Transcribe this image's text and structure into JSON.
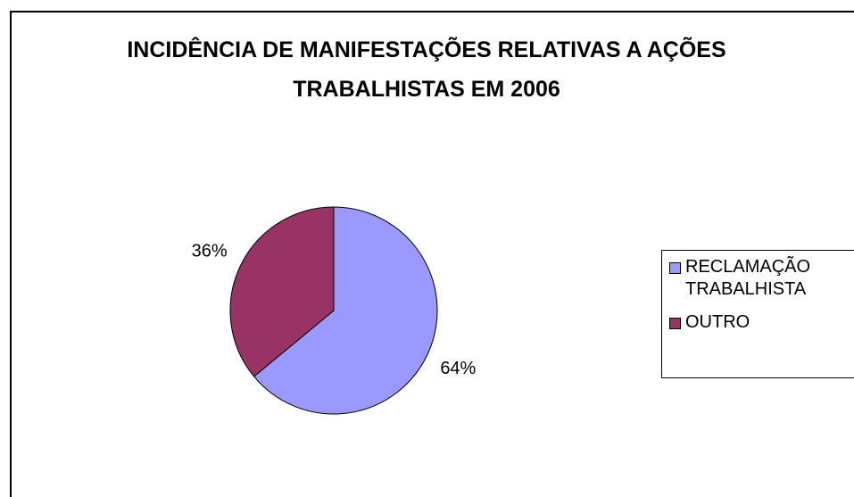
{
  "chart_data": {
    "type": "pie",
    "title": "INCIDÊNCIA DE MANIFESTAÇÕES RELATIVAS A AÇÕES TRABALHISTAS EM 2006",
    "categories": [
      "RECLAMAÇÃO TRABALHISTA",
      "OUTRO"
    ],
    "values": [
      64,
      36
    ],
    "value_labels": [
      "64%",
      "36%"
    ],
    "colors": [
      "#9999ff",
      "#993366"
    ],
    "legend": "right"
  }
}
